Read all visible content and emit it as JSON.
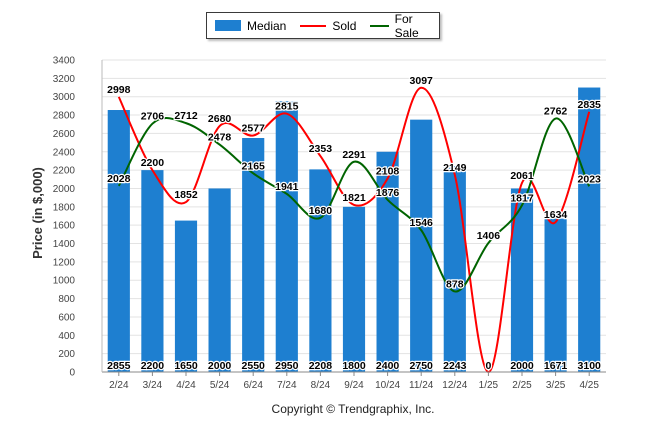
{
  "chart_data": {
    "type": "bar",
    "categories": [
      "2/24",
      "3/24",
      "4/24",
      "5/24",
      "6/24",
      "7/24",
      "8/24",
      "9/24",
      "10/24",
      "11/24",
      "12/24",
      "1/25",
      "2/25",
      "3/25",
      "4/25"
    ],
    "series": [
      {
        "name": "Median",
        "kind": "bar",
        "color": "#1e7fd0",
        "values": [
          2855,
          2200,
          1650,
          2000,
          2550,
          2950,
          2208,
          1800,
          2400,
          2750,
          2243,
          0,
          2000,
          1671,
          3100
        ]
      },
      {
        "name": "Sold",
        "kind": "line",
        "color": "#ff0000",
        "values": [
          2998,
          2200,
          1852,
          2680,
          2577,
          2815,
          2353,
          1821,
          2108,
          3097,
          2149,
          0,
          2061,
          1634,
          2835
        ]
      },
      {
        "name": "For Sale",
        "kind": "line",
        "color": "#006400",
        "values": [
          2028,
          2706,
          2712,
          2478,
          2165,
          1941,
          1680,
          2291,
          1876,
          1546,
          878,
          1406,
          1817,
          2762,
          2023
        ]
      }
    ],
    "ylabel": "Price (in $,000)",
    "xlabel": "",
    "ylim": [
      0,
      3400
    ],
    "yticks": [
      0,
      200,
      400,
      600,
      800,
      1000,
      1200,
      1400,
      1600,
      1800,
      2000,
      2200,
      2400,
      2600,
      2800,
      3000,
      3200,
      3400
    ],
    "grid": true,
    "legend_position": "top"
  },
  "legend": {
    "median": "Median",
    "sold": "Sold",
    "for_sale": "For Sale"
  },
  "footer": {
    "copyright": "Copyright © Trendgraphix, Inc."
  }
}
